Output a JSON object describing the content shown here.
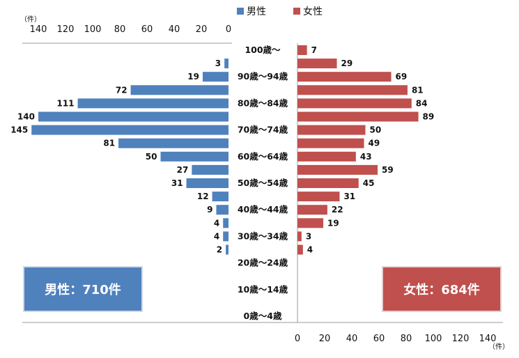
{
  "chart_data": {
    "type": "bar",
    "orientation": "horizontal-butterfly",
    "categories": [
      "100歳～",
      "",
      "90歳～94歳",
      "",
      "80歳～84歳",
      "",
      "70歳～74歳",
      "",
      "60歳～64歳",
      "",
      "50歳～54歳",
      "",
      "40歳～44歳",
      "",
      "30歳～34歳",
      "",
      "20歳～24歳",
      "",
      "10歳～14歳",
      "",
      "0歳～4歳"
    ],
    "series": [
      {
        "name": "男性",
        "color": "#4F81BD",
        "side": "left",
        "values": [
          0,
          3,
          19,
          72,
          111,
          140,
          145,
          81,
          50,
          27,
          31,
          12,
          9,
          4,
          4,
          2,
          0,
          0,
          0,
          0,
          0
        ],
        "labels": [
          "",
          "3",
          "19",
          "72",
          "111",
          "140",
          "145",
          "81",
          "50",
          "27",
          "31",
          "12",
          "9",
          "4",
          "4",
          "2",
          "",
          "",
          "",
          "",
          ""
        ]
      },
      {
        "name": "女性",
        "color": "#C0504D",
        "side": "right",
        "values": [
          7,
          29,
          69,
          81,
          84,
          89,
          50,
          49,
          43,
          59,
          45,
          31,
          22,
          19,
          3,
          4,
          0,
          0,
          0,
          0,
          0
        ],
        "labels": [
          "7",
          "29",
          "69",
          "81",
          "84",
          "89",
          "50",
          "49",
          "43",
          "59",
          "45",
          "31",
          "22",
          "19",
          "3",
          "4",
          "",
          "",
          "",
          "",
          ""
        ]
      }
    ],
    "x_ticks": [
      "0",
      "20",
      "40",
      "60",
      "80",
      "100",
      "120",
      "140"
    ],
    "xlim": [
      0,
      140
    ],
    "unit_label": "（件）",
    "legend_position": "top-center",
    "grid": false
  },
  "totals": {
    "male": "男性：710件",
    "female": "女性：684件"
  }
}
